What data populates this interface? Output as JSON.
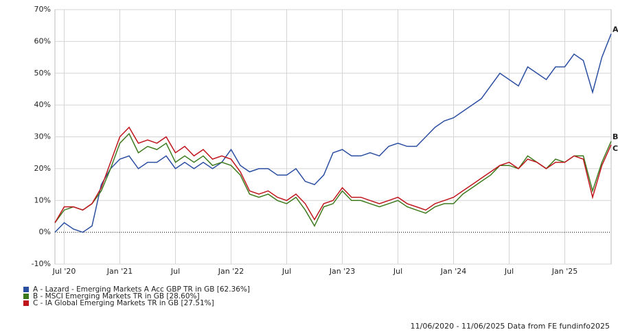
{
  "chart_data": {
    "type": "line",
    "x": [
      "2020-06",
      "2020-07",
      "2020-08",
      "2020-09",
      "2020-10",
      "2020-11",
      "2020-12",
      "2021-01",
      "2021-02",
      "2021-03",
      "2021-04",
      "2021-05",
      "2021-06",
      "2021-07",
      "2021-08",
      "2021-09",
      "2021-10",
      "2021-11",
      "2021-12",
      "2022-01",
      "2022-02",
      "2022-03",
      "2022-04",
      "2022-05",
      "2022-06",
      "2022-07",
      "2022-08",
      "2022-09",
      "2022-10",
      "2022-11",
      "2022-12",
      "2023-01",
      "2023-02",
      "2023-03",
      "2023-04",
      "2023-05",
      "2023-06",
      "2023-07",
      "2023-08",
      "2023-09",
      "2023-10",
      "2023-11",
      "2023-12",
      "2024-01",
      "2024-02",
      "2024-03",
      "2024-04",
      "2024-05",
      "2024-06",
      "2024-07",
      "2024-08",
      "2024-09",
      "2024-10",
      "2024-11",
      "2024-12",
      "2025-01",
      "2025-02",
      "2025-03",
      "2025-04",
      "2025-05",
      "2025-06"
    ],
    "series": [
      {
        "name": "A - Lazard - Emerging Markets A Acc GBP TR in GB [62.36%]",
        "label": "A",
        "color": "#2a4ea0",
        "values": [
          0,
          3,
          1,
          0,
          2,
          15,
          20,
          23,
          24,
          20,
          22,
          22,
          24,
          20,
          22,
          20,
          22,
          20,
          22,
          26,
          21,
          19,
          20,
          20,
          18,
          18,
          20,
          16,
          15,
          18,
          25,
          26,
          24,
          24,
          25,
          24,
          27,
          28,
          27,
          27,
          30,
          33,
          35,
          36,
          38,
          40,
          42,
          46,
          50,
          48,
          46,
          52,
          50,
          48,
          52,
          52,
          56,
          54,
          44,
          55,
          62.36
        ]
      },
      {
        "name": "B - MSCI Emerging Markets TR in GB [28.60%]",
        "label": "B",
        "color": "#3d7a1e",
        "values": [
          3,
          7,
          8,
          7,
          9,
          13,
          20,
          28,
          31,
          25,
          27,
          26,
          28,
          22,
          24,
          22,
          24,
          21,
          22,
          21,
          18,
          12,
          11,
          12,
          10,
          9,
          11,
          7,
          2,
          8,
          9,
          13,
          10,
          10,
          9,
          8,
          9,
          10,
          8,
          7,
          6,
          8,
          9,
          9,
          12,
          14,
          16,
          18,
          21,
          21,
          20,
          24,
          22,
          20,
          23,
          22,
          24,
          24,
          13,
          22,
          28.6
        ]
      },
      {
        "name": "C - IA Global Emerging Markets TR in GB [27.51%]",
        "label": "C",
        "color": "#c0141c",
        "values": [
          3,
          8,
          8,
          7,
          9,
          14,
          22,
          30,
          33,
          28,
          29,
          28,
          30,
          25,
          27,
          24,
          26,
          23,
          24,
          23,
          19,
          13,
          12,
          13,
          11,
          10,
          12,
          9,
          4,
          9,
          10,
          14,
          11,
          11,
          10,
          9,
          10,
          11,
          9,
          8,
          7,
          9,
          10,
          11,
          13,
          15,
          17,
          19,
          21,
          22,
          20,
          23,
          22,
          20,
          22,
          22,
          24,
          23,
          11,
          21,
          27.51
        ]
      }
    ],
    "ylim": [
      -10,
      70
    ],
    "yticks": [
      {
        "value": -10,
        "label": "-10%"
      },
      {
        "value": 0,
        "label": "0%"
      },
      {
        "value": 10,
        "label": "10%"
      },
      {
        "value": 20,
        "label": "20%"
      },
      {
        "value": 30,
        "label": "30%"
      },
      {
        "value": 40,
        "label": "40%"
      },
      {
        "value": 50,
        "label": "50%"
      },
      {
        "value": 60,
        "label": "60%"
      },
      {
        "value": 70,
        "label": "70%"
      }
    ],
    "xlim": [
      "2020-06",
      "2025-06"
    ],
    "xticks": [
      {
        "value": "2020-07",
        "label": "Jul '20"
      },
      {
        "value": "2021-01",
        "label": "Jan '21"
      },
      {
        "value": "2021-07",
        "label": "Jul"
      },
      {
        "value": "2022-01",
        "label": "Jan '22"
      },
      {
        "value": "2022-07",
        "label": "Jul"
      },
      {
        "value": "2023-01",
        "label": "Jan '23"
      },
      {
        "value": "2023-07",
        "label": "Jul"
      },
      {
        "value": "2024-01",
        "label": "Jan '24"
      },
      {
        "value": "2024-07",
        "label": "Jul"
      },
      {
        "value": "2025-01",
        "label": "Jan '25"
      }
    ],
    "grid": true,
    "footer": "11/06/2020 - 11/06/2025 Data from FE fundinfo2025"
  }
}
